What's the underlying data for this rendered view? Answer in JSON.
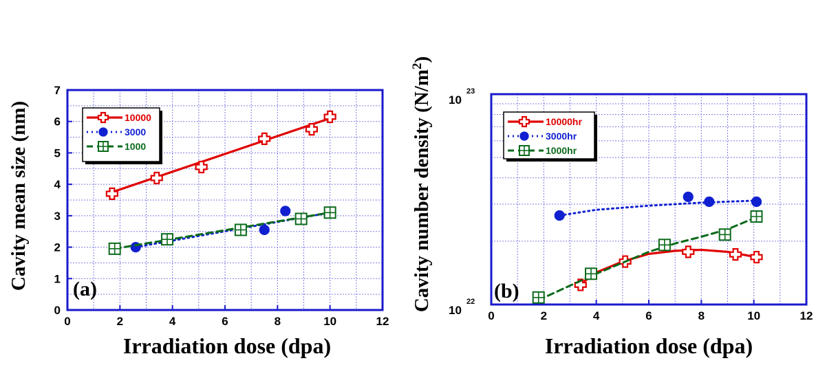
{
  "colors": {
    "frame": "#1a1acc",
    "grid": "#7a7ae0",
    "s10000": "#e00000",
    "s3000": "#1020d0",
    "s1000": "#0a6a1a"
  },
  "chart_data": [
    {
      "type": "line",
      "panel_label": "(a)",
      "xlabel": "Irradiation dose (dpa)",
      "ylabel": "Cavity mean size (nm)",
      "xlim": [
        0,
        12
      ],
      "ylim": [
        0,
        7
      ],
      "xticks": [
        "0",
        "2",
        "4",
        "6",
        "8",
        "10",
        "12"
      ],
      "yticks": [
        "0",
        "1",
        "2",
        "3",
        "4",
        "5",
        "6",
        "7"
      ],
      "grid": true,
      "legend_position": "top-left",
      "series": [
        {
          "name": "10000",
          "marker": "cross",
          "line": "solid",
          "x": [
            1.7,
            3.4,
            5.1,
            7.5,
            9.3,
            10.0
          ],
          "y": [
            3.7,
            4.2,
            4.55,
            5.45,
            5.75,
            6.15
          ],
          "fit_x": [
            1.7,
            10.0
          ],
          "fit_y": [
            3.75,
            6.1
          ]
        },
        {
          "name": "3000",
          "marker": "circle",
          "line": "dotted",
          "x": [
            2.6,
            7.5,
            8.3,
            10.0
          ],
          "y": [
            2.0,
            2.55,
            3.15,
            3.1
          ],
          "fit_x": [
            2.6,
            10.0
          ],
          "fit_y": [
            2.0,
            3.1
          ]
        },
        {
          "name": "1000",
          "marker": "boxplus",
          "line": "dashed",
          "x": [
            1.8,
            3.8,
            6.6,
            8.9,
            10.0
          ],
          "y": [
            1.95,
            2.25,
            2.55,
            2.9,
            3.1
          ],
          "fit_x": [
            1.8,
            10.0
          ],
          "fit_y": [
            1.95,
            3.1
          ]
        }
      ]
    },
    {
      "type": "line",
      "panel_label": "(b)",
      "xlabel": "Irradiation dose (dpa)",
      "ylabel": "Cavity number density (N/m",
      "ylabel_superscript": "2",
      "ylabel_close": ")",
      "xlim": [
        0,
        12
      ],
      "ylim": [
        1e+22,
        1e+23
      ],
      "yscale": "log",
      "xticks": [
        "0",
        "2",
        "4",
        "6",
        "8",
        "10",
        "12"
      ],
      "yticks": [
        {
          "base": "10",
          "exp": "22"
        },
        {
          "base": "10",
          "exp": "23"
        }
      ],
      "grid": true,
      "legend_position": "top-left",
      "series": [
        {
          "name": "10000hr",
          "marker": "cross",
          "line": "solid",
          "x": [
            3.4,
            5.1,
            7.5,
            9.3,
            10.1
          ],
          "y": [
            1.24e+22,
            1.6e+22,
            1.78e+22,
            1.73e+22,
            1.68e+22
          ],
          "fit_x": [
            3.4,
            4.0,
            5.0,
            6.0,
            7.0,
            8.0,
            9.0,
            10.1
          ],
          "fit_y": [
            1.25e+22,
            1.42e+22,
            1.6e+22,
            1.74e+22,
            1.8e+22,
            1.82e+22,
            1.78e+22,
            1.68e+22
          ]
        },
        {
          "name": "3000hr",
          "marker": "circle",
          "line": "dotted",
          "x": [
            2.6,
            7.5,
            8.3,
            10.1
          ],
          "y": [
            2.65e+22,
            3.25e+22,
            3.08e+22,
            3.08e+22
          ],
          "fit_x": [
            2.6,
            4.0,
            6.0,
            8.0,
            10.1
          ],
          "fit_y": [
            2.65e+22,
            2.82e+22,
            2.95e+22,
            3.05e+22,
            3.12e+22
          ]
        },
        {
          "name": "1000hr",
          "marker": "boxplus",
          "line": "dashed",
          "x": [
            1.8,
            3.8,
            6.6,
            8.9,
            10.1
          ],
          "y": [
            1.08e+22,
            1.4e+22,
            1.92e+22,
            2.15e+22,
            2.62e+22
          ],
          "fit_x": [
            1.8,
            3.0,
            4.0,
            5.0,
            6.0,
            7.0,
            8.0,
            9.0,
            10.1
          ],
          "fit_y": [
            1.05e+22,
            1.23e+22,
            1.4e+22,
            1.58e+22,
            1.78e+22,
            1.95e+22,
            2.1e+22,
            2.28e+22,
            2.6e+22
          ]
        }
      ]
    }
  ]
}
